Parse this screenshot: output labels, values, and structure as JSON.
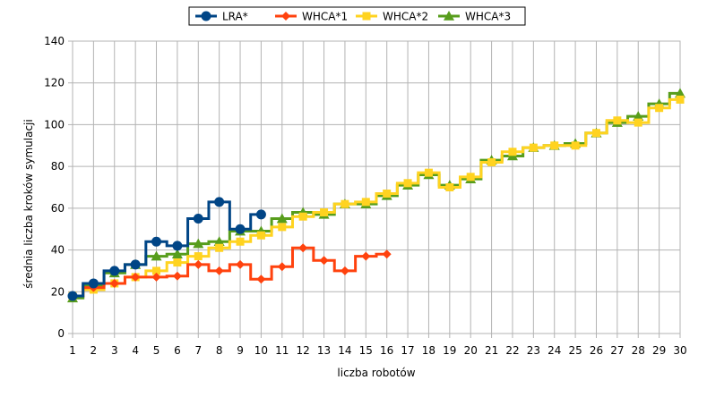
{
  "chart_data": {
    "type": "line",
    "step": true,
    "title": "",
    "xlabel": "liczba robotów",
    "ylabel": "średnia liczba kroków symulacji",
    "xlim": [
      1,
      30
    ],
    "ylim": [
      0,
      140
    ],
    "x_ticks": [
      1,
      2,
      3,
      4,
      5,
      6,
      7,
      8,
      9,
      10,
      11,
      12,
      13,
      14,
      15,
      16,
      17,
      18,
      19,
      20,
      21,
      22,
      23,
      24,
      25,
      26,
      27,
      28,
      29,
      30
    ],
    "y_ticks": [
      0,
      20,
      40,
      60,
      80,
      100,
      120,
      140
    ],
    "grid": true,
    "legend_position": "top",
    "series": [
      {
        "name": "LRA*",
        "color": "#004586",
        "marker": "circle",
        "x": [
          1,
          2,
          3,
          4,
          5,
          6,
          7,
          8,
          9,
          10
        ],
        "values": [
          18,
          24,
          30,
          33,
          44,
          42,
          55,
          63,
          50,
          57
        ]
      },
      {
        "name": "WHCA*1",
        "color": "#ff420e",
        "marker": "diamond",
        "x": [
          1,
          2,
          3,
          4,
          5,
          6,
          7,
          8,
          9,
          10,
          11,
          12,
          13,
          14,
          15,
          16
        ],
        "values": [
          18,
          22,
          24,
          27,
          27,
          27.5,
          33,
          30,
          33,
          26,
          32,
          41,
          35,
          30,
          37,
          38
        ]
      },
      {
        "name": "WHCA*2",
        "color": "#ffd320",
        "marker": "square",
        "x": [
          1,
          2,
          3,
          4,
          5,
          6,
          7,
          8,
          9,
          10,
          11,
          12,
          13,
          14,
          15,
          16,
          17,
          18,
          19,
          20,
          21,
          22,
          23,
          24,
          25,
          26,
          27,
          28,
          29,
          30
        ],
        "values": [
          18,
          21,
          24,
          27,
          30,
          34,
          37,
          41,
          44,
          47,
          51,
          56,
          58,
          62,
          63,
          67,
          72,
          77,
          70,
          75,
          82,
          87,
          89,
          90,
          90,
          96,
          102,
          101,
          108,
          112
        ]
      },
      {
        "name": "WHCA*3",
        "color": "#579d1c",
        "marker": "triangle",
        "x": [
          1,
          2,
          3,
          4,
          5,
          6,
          7,
          8,
          9,
          10,
          11,
          12,
          13,
          14,
          15,
          16,
          17,
          18,
          19,
          20,
          21,
          22,
          23,
          24,
          25,
          26,
          27,
          28,
          29,
          30
        ],
        "values": [
          17,
          23,
          29,
          33,
          37,
          38,
          43,
          44,
          49,
          49,
          55,
          58,
          57,
          62,
          62,
          66,
          71,
          76,
          71,
          74,
          83,
          85,
          89,
          90,
          91,
          96,
          101,
          104,
          110,
          115
        ]
      }
    ]
  }
}
